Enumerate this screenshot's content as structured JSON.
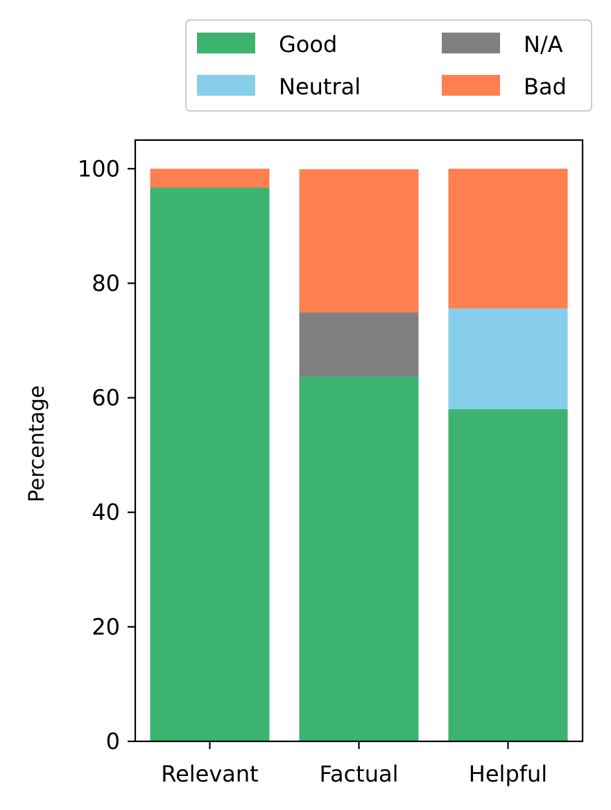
{
  "chart_data": {
    "type": "bar",
    "stacked": true,
    "categories": [
      "Relevant",
      "Factual",
      "Helpful"
    ],
    "series": [
      {
        "name": "Good",
        "color": "#3cb371",
        "values": [
          96.7,
          63.7,
          58.0
        ]
      },
      {
        "name": "N/A",
        "color": "#808080",
        "values": [
          0,
          11.2,
          0
        ]
      },
      {
        "name": "Neutral",
        "color": "#87ceeb",
        "values": [
          0,
          0,
          17.6
        ]
      },
      {
        "name": "Bad",
        "color": "#ff7f50",
        "values": [
          3.3,
          25.0,
          24.4
        ]
      }
    ],
    "ylabel": "Percentage",
    "ylim": [
      0,
      105
    ],
    "yticks": [
      "0",
      "20",
      "40",
      "60",
      "80",
      "100"
    ],
    "legend": {
      "placement": "top-right",
      "columns": 2,
      "order": [
        "Good",
        "Neutral",
        "N/A",
        "Bad"
      ]
    }
  }
}
